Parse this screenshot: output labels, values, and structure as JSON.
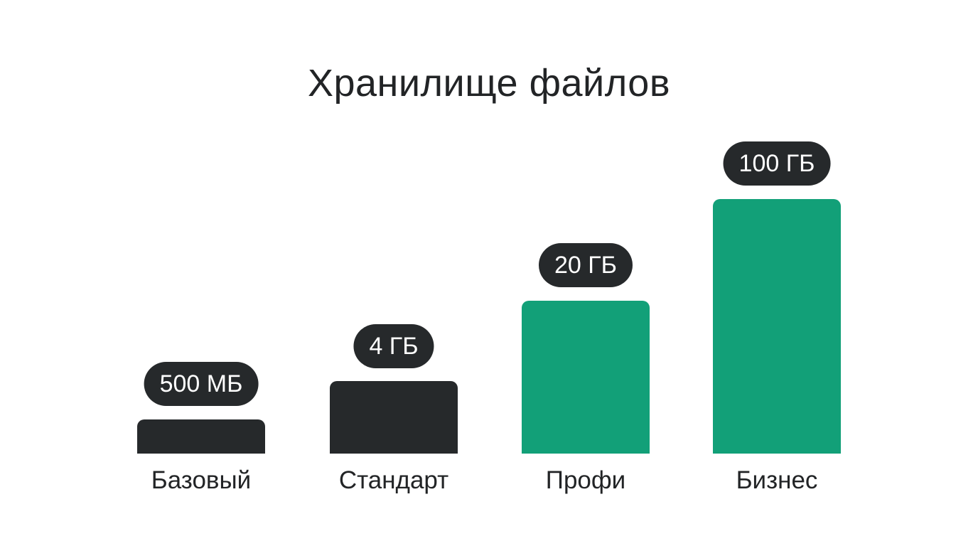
{
  "title": "Хранилище файлов",
  "tiers": [
    {
      "name": "Базовый",
      "capacity": "500 МБ"
    },
    {
      "name": "Стандарт",
      "capacity": "4 ГБ"
    },
    {
      "name": "Профи",
      "capacity": "20 ГБ"
    },
    {
      "name": "Бизнес",
      "capacity": "100 ГБ"
    }
  ]
}
